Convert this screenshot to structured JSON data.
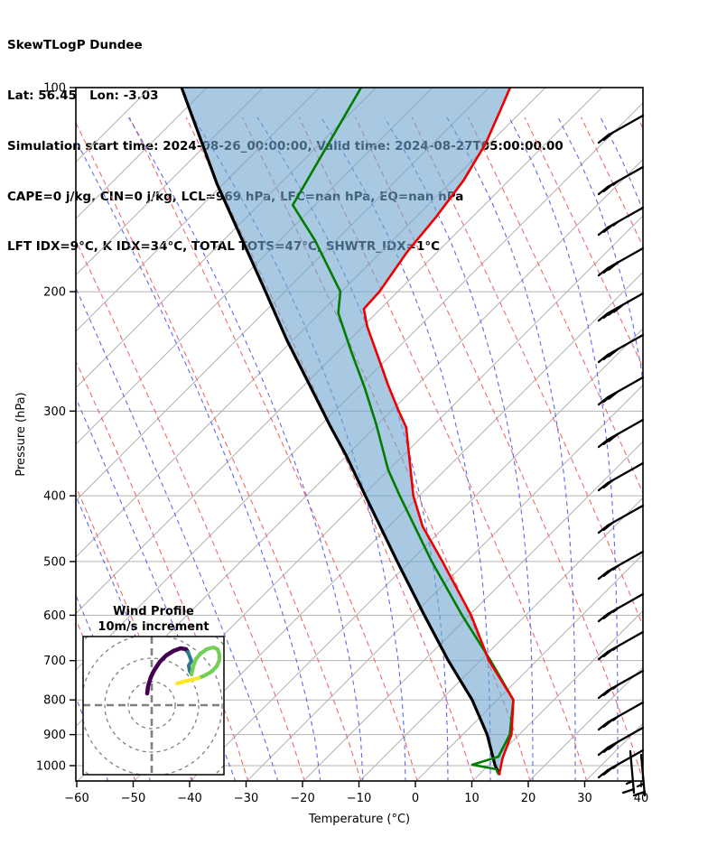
{
  "header": {
    "line1": "SkewTLogP Dundee",
    "line2": "Lat: 56.45   Lon: -3.03",
    "line3": "Simulation start time: 2024-08-26_00:00:00, Valid time: 2024-08-27T05:00:00.00",
    "line4": "CAPE=0 j/kg, CIN=0 j/kg, LCL=969 hPa, LFC=nan hPa, EQ=nan hPa",
    "line5": "LFT IDX=9°C, K IDX=34°C, TOTAL TOTS=47°C, SHWTR_IDX=1°C"
  },
  "chart_data": {
    "type": "line",
    "subtype": "skew-t-log-p",
    "title": "SkewTLogP Dundee",
    "pressure_axis": {
      "label": "Pressure (hPa)",
      "ticks": [
        100,
        200,
        300,
        400,
        500,
        600,
        700,
        800,
        900,
        1000
      ],
      "range": [
        100,
        1050
      ]
    },
    "temperature_axis": {
      "label": "Temperature (°C)",
      "ticks": [
        -60,
        -50,
        -40,
        -30,
        -20,
        -10,
        0,
        10,
        20,
        30,
        40
      ],
      "range": [
        -60,
        40
      ]
    },
    "grid": {
      "isotherm_color": "#b3b3b3",
      "dry_adiabat_color": "#ef6a6a",
      "moist_adiabat_color": "#5b6be8"
    },
    "series": [
      {
        "name": "parcel-envelope",
        "color": "#000000",
        "width": 3.2,
        "points": [
          [
            100,
            -164.3
          ],
          [
            139,
            -140.8
          ],
          [
            197,
            -114.4
          ],
          [
            236,
            -100.8
          ],
          [
            275,
            -88.8
          ],
          [
            314,
            -78.4
          ],
          [
            349,
            -69.9
          ],
          [
            400,
            -59.4
          ],
          [
            500,
            -42.1
          ],
          [
            600,
            -27.8
          ],
          [
            700,
            -15.5
          ],
          [
            800,
            -4.3
          ],
          [
            900,
            4.5
          ],
          [
            1000,
            11.4
          ],
          [
            1028,
            13.6
          ]
        ]
      },
      {
        "name": "dewpoint",
        "color": "#007d00",
        "width": 2.6,
        "points": [
          [
            100,
            -132.5
          ],
          [
            149,
            -123.8
          ],
          [
            168,
            -113.6
          ],
          [
            200,
            -100.0
          ],
          [
            215,
            -96.6
          ],
          [
            246,
            -87.2
          ],
          [
            277,
            -78.7
          ],
          [
            314,
            -70.1
          ],
          [
            366,
            -60.0
          ],
          [
            400,
            -53.3
          ],
          [
            500,
            -36.0
          ],
          [
            600,
            -21.1
          ],
          [
            700,
            -8.0
          ],
          [
            800,
            3.0
          ],
          [
            900,
            8.5
          ],
          [
            970,
            10.4
          ],
          [
            997,
            7.2
          ],
          [
            1012,
            12.2
          ],
          [
            1028,
            13.4
          ]
        ]
      },
      {
        "name": "temperature",
        "color": "#ee0000",
        "width": 2.6,
        "points": [
          [
            100,
            -106.1
          ],
          [
            108,
            -103.8
          ],
          [
            121,
            -100.5
          ],
          [
            137,
            -97.9
          ],
          [
            155,
            -96.3
          ],
          [
            175,
            -95.2
          ],
          [
            200,
            -93.1
          ],
          [
            212,
            -92.8
          ],
          [
            225,
            -89.1
          ],
          [
            253,
            -80.8
          ],
          [
            275,
            -74.9
          ],
          [
            300,
            -68.5
          ],
          [
            317,
            -64.3
          ],
          [
            400,
            -50.9
          ],
          [
            444,
            -43.8
          ],
          [
            500,
            -34.1
          ],
          [
            600,
            -19.5
          ],
          [
            700,
            -8.3
          ],
          [
            800,
            3.0
          ],
          [
            900,
            8.8
          ],
          [
            975,
            11.4
          ],
          [
            1028,
            13.6
          ]
        ]
      }
    ],
    "shading": {
      "between": [
        "parcel-envelope",
        "temperature"
      ],
      "color": "rgba(110,165,205,0.6)"
    },
    "indices": {
      "CAPE": "0 j/kg",
      "CIN": "0 j/kg",
      "LCL": "969 hPa",
      "LFC": "nan",
      "EQ": "nan",
      "LFT_IDX": "9°C",
      "K_IDX": "34°C",
      "TOTAL_TOTS": "47°C",
      "SHWTR_IDX": "1°C"
    },
    "wind_barbs": {
      "barbs": [
        [
          140,
          2,
          0
        ],
        [
          197,
          2,
          1
        ],
        [
          242,
          2,
          1
        ],
        [
          287,
          3,
          0
        ],
        [
          337,
          4,
          0
        ],
        [
          383,
          3,
          0
        ],
        [
          430,
          3,
          0
        ],
        [
          477,
          3,
          0
        ],
        [
          525,
          2,
          0
        ],
        [
          572,
          2,
          0
        ],
        [
          623,
          2,
          1
        ],
        [
          670,
          2,
          1
        ],
        [
          712,
          2,
          1
        ],
        [
          755,
          2,
          1
        ],
        [
          790,
          2,
          1
        ],
        [
          818,
          3,
          0
        ],
        [
          843,
          2,
          1
        ]
      ],
      "surface_barbs": [
        {
          "staff": [
            698,
            832,
            702,
            878
          ],
          "feathers": [
            [
              702,
              874,
              690,
              878
            ],
            [
              701,
              865,
              694,
              868
            ]
          ]
        },
        {
          "staff": [
            710,
            836,
            714,
            881
          ],
          "feathers": [
            [
              714,
              877,
              702,
              881
            ],
            [
              713,
              868,
              706,
              871
            ]
          ]
        }
      ]
    },
    "hodograph": {
      "title_line1": "Wind Profile",
      "title_line2": "10m/s increment",
      "ring_increment_mps": 10,
      "ring_radii": [
        26,
        52,
        78,
        104
      ],
      "trace_segments": [
        {
          "color": "#440154",
          "width": 4.6,
          "points": [
            [
              163,
              768
            ],
            [
              164,
              760
            ],
            [
              167,
              750
            ],
            [
              171,
              742
            ],
            [
              177,
              733
            ],
            [
              184,
              726
            ],
            [
              192,
              721
            ],
            [
              200,
              718
            ],
            [
              206,
              719
            ],
            [
              208,
              722
            ]
          ]
        },
        {
          "color": "#2a788e",
          "width": 4.0,
          "points": [
            [
              208,
              722
            ],
            [
              210,
              727
            ],
            [
              212,
              732
            ],
            [
              209,
              737
            ],
            [
              210,
              743
            ],
            [
              212,
              747
            ]
          ]
        },
        {
          "color": "#74d055",
          "width": 4.2,
          "points": [
            [
              212,
              747
            ],
            [
              214,
              738
            ],
            [
              217,
              730
            ],
            [
              222,
              724
            ],
            [
              229,
              719
            ],
            [
              236,
              717
            ],
            [
              241,
              719
            ],
            [
              243,
              725
            ],
            [
              243,
              731
            ],
            [
              240,
              738
            ],
            [
              234,
              744
            ],
            [
              227,
              748
            ],
            [
              220,
              751
            ]
          ]
        },
        {
          "color": "#fde725",
          "width": 4.2,
          "points": [
            [
              220,
              751
            ],
            [
              212,
              753
            ],
            [
              203,
              755
            ],
            [
              196,
              757
            ]
          ]
        }
      ]
    }
  }
}
